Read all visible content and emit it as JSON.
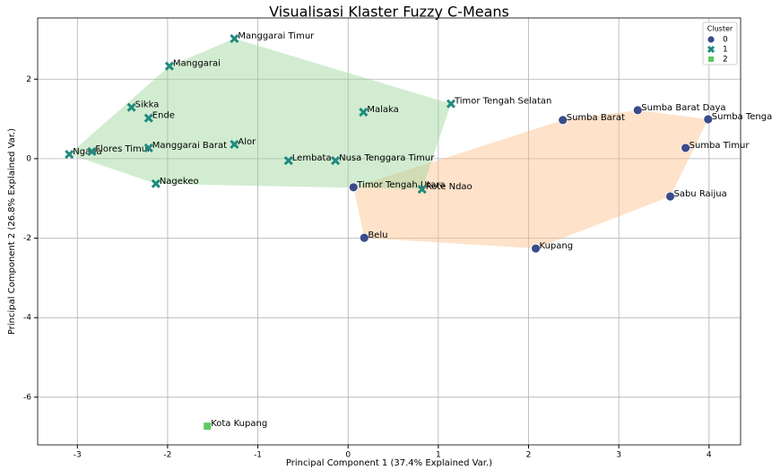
{
  "chart_data": {
    "type": "scatter",
    "title": "Visualisasi Klaster Fuzzy C-Means",
    "x_label": "Principal Component 1 (37.4% Explained Var.)",
    "y_label": "Principal Component 2 (26.8% Explained Var.)",
    "legend_title": "Cluster",
    "legend": "upper right",
    "grid": true,
    "hull": true,
    "xlim": [
      -3.44,
      4.35
    ],
    "ylim": [
      -7.2,
      3.54
    ],
    "xticks": [
      -3,
      -2,
      -1,
      0,
      1,
      2,
      3,
      4
    ],
    "yticks": [
      -6,
      -4,
      -2,
      0,
      2
    ],
    "series": [
      {
        "name": "0",
        "color": "#3b4c8a",
        "marker": "o",
        "hull_color": "#fdbf8a",
        "labels": [
          "Timor Tengah Utara",
          "Belu",
          "Kupang",
          "Sumba Barat",
          "Sumba Barat Daya",
          "Sumba Tengah",
          "Sumba Timur",
          "Sabu Raijua"
        ],
        "x": [
          0.06,
          0.18,
          2.08,
          2.38,
          3.21,
          3.99,
          3.74,
          3.57
        ],
        "values": [
          -0.72,
          -1.99,
          -2.26,
          0.97,
          1.22,
          0.99,
          0.27,
          -0.95
        ]
      },
      {
        "name": "1",
        "color": "#218a80",
        "marker": "x",
        "hull_color": "#9bd49a",
        "labels": [
          "Manggarai Timur",
          "Manggarai",
          "Sikka",
          "Ende",
          "Ngada",
          "Flores Timur",
          "Manggarai Barat",
          "Alor",
          "Nagekeo",
          "Lembata",
          "Nusa Tenggara Timur",
          "Malaka",
          "Timor Tengah Selatan",
          "Rote Ndao"
        ],
        "x": [
          -1.26,
          -1.98,
          -2.4,
          -2.21,
          -3.09,
          -2.84,
          -2.21,
          -1.26,
          -2.13,
          -0.66,
          -0.14,
          0.17,
          1.14,
          0.82
        ],
        "values": [
          3.02,
          2.33,
          1.29,
          1.02,
          0.11,
          0.18,
          0.27,
          0.36,
          -0.63,
          -0.05,
          -0.05,
          1.17,
          1.38,
          -0.77
        ]
      },
      {
        "name": "2",
        "color": "#5ec962",
        "marker": "s",
        "hull_color": "#5ec962",
        "labels": [
          "Kota Kupang"
        ],
        "x": [
          -1.56
        ],
        "values": [
          -6.73
        ]
      }
    ]
  }
}
